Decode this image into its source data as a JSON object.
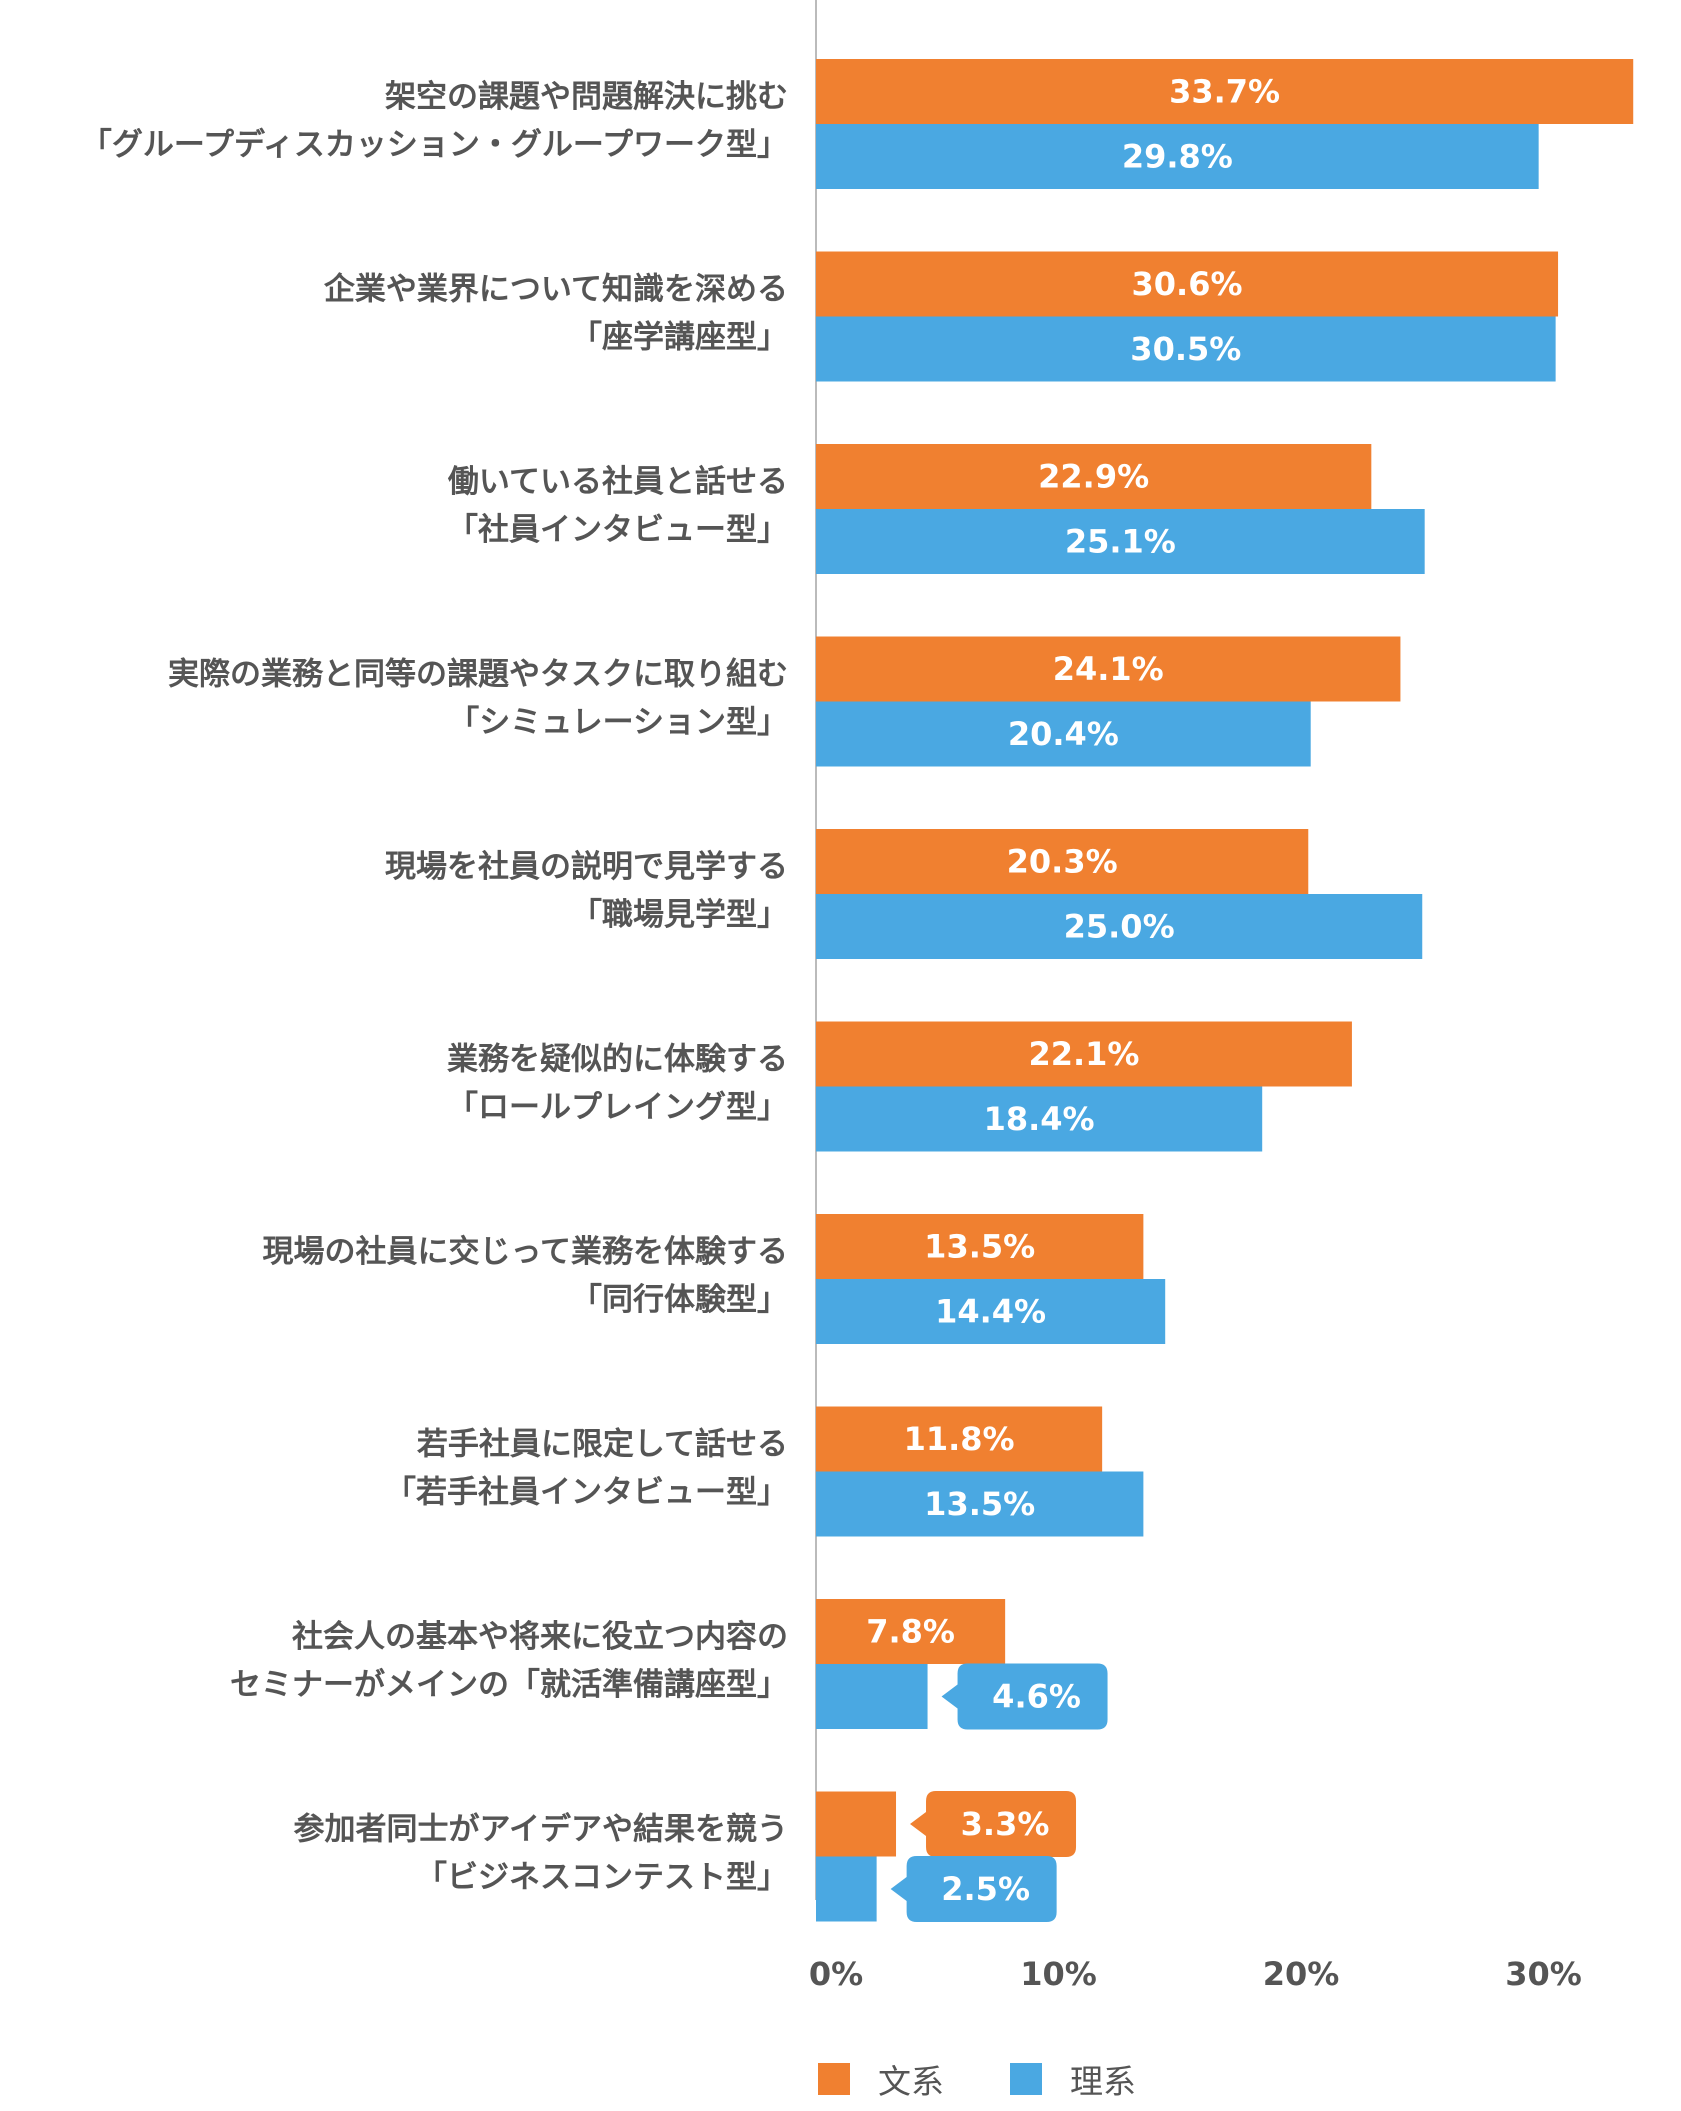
{
  "chart_data": {
    "type": "bar",
    "orientation": "horizontal",
    "categories": [
      [
        "架空の課題や問題解決に挑む",
        "「グループディスカッション・グループワーク型」"
      ],
      [
        "企業や業界について知識を深める",
        "「座学講座型」"
      ],
      [
        "働いている社員と話せる",
        "「社員インタビュー型」"
      ],
      [
        "実際の業務と同等の課題やタスクに取り組む",
        "「シミュレーション型」"
      ],
      [
        "現場を社員の説明で見学する",
        "「職場見学型」"
      ],
      [
        "業務を疑似的に体験する",
        "「ロールプレイング型」"
      ],
      [
        "現場の社員に交じって業務を体験する",
        "「同行体験型」"
      ],
      [
        "若手社員に限定して話せる",
        "「若手社員インタビュー型」"
      ],
      [
        "社会人の基本や将来に役立つ内容の",
        "セミナーがメインの「就活準備講座型」"
      ],
      [
        "参加者同士がアイデアや結果を競う",
        "「ビジネスコンテスト型」"
      ]
    ],
    "series": [
      {
        "name": "文系",
        "color": "#F08030",
        "values": [
          33.7,
          30.6,
          22.9,
          24.1,
          20.3,
          22.1,
          13.5,
          11.8,
          7.8,
          3.3
        ],
        "labels": [
          "33.7%",
          "30.6%",
          "22.9%",
          "24.1%",
          "20.3%",
          "22.1%",
          "13.5%",
          "11.8%",
          "7.8%",
          "3.3%"
        ]
      },
      {
        "name": "理系",
        "color": "#4AA8E2",
        "values": [
          29.8,
          30.5,
          25.1,
          20.4,
          25.0,
          18.4,
          14.4,
          13.5,
          4.6,
          2.5
        ],
        "labels": [
          "29.8%",
          "30.5%",
          "25.1%",
          "20.4%",
          "25.0%",
          "18.4%",
          "14.4%",
          "13.5%",
          "4.6%",
          "2.5%"
        ]
      }
    ],
    "xlim": [
      0,
      35
    ],
    "xticks": [
      0,
      10,
      20,
      30
    ],
    "xtick_labels": [
      "0%",
      "10%",
      "20%",
      "30%"
    ],
    "grid": false,
    "legend_position": "bottom",
    "label_text_color": "#ffffff",
    "category_text_color": "#555555",
    "axis_color": "#BBBBBB"
  }
}
